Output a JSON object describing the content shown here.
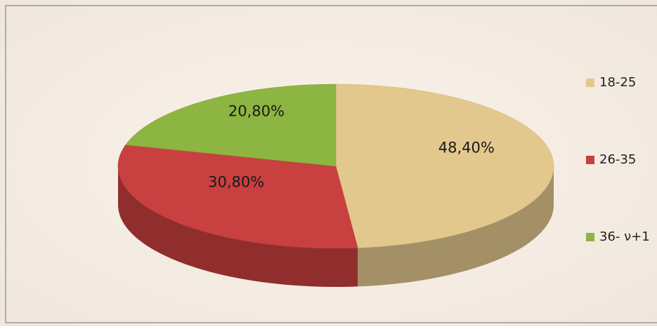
{
  "chart_data": {
    "type": "pie",
    "three_d": true,
    "categories": [
      "18-25",
      "26-35",
      "36- ν+1"
    ],
    "values": [
      48.4,
      30.8,
      20.8
    ],
    "value_labels": [
      "48,40%",
      "30,80%",
      "20,80%"
    ],
    "colors": [
      "#e3c88e",
      "#c8403f",
      "#8db541"
    ],
    "legend": "right"
  }
}
